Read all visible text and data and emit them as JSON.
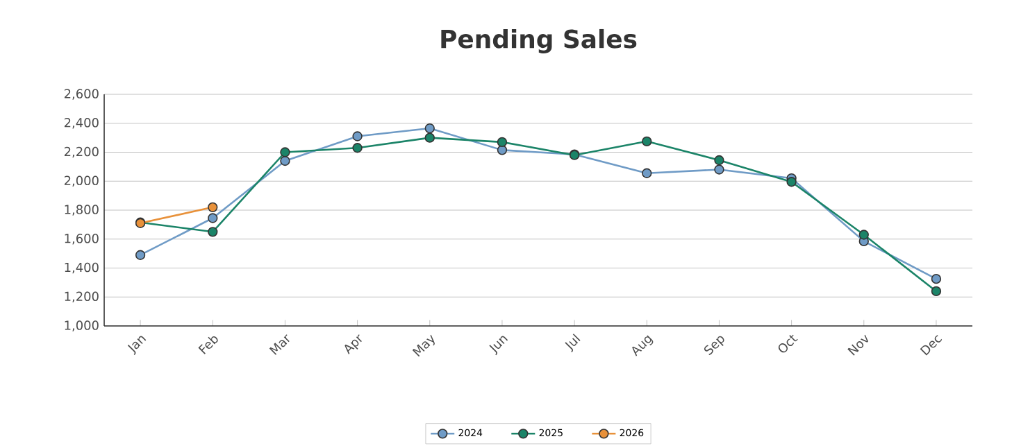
{
  "chart_data": {
    "type": "line",
    "title": "Pending Sales",
    "categories": [
      "Jan",
      "Feb",
      "Mar",
      "Apr",
      "May",
      "Jun",
      "Jul",
      "Aug",
      "Sep",
      "Oct",
      "Nov",
      "Dec"
    ],
    "series": [
      {
        "name": "2024",
        "color": "#6f9bc6",
        "values": [
          1490,
          1745,
          2140,
          2310,
          2365,
          2215,
          2185,
          2055,
          2080,
          2020,
          1585,
          1325
        ]
      },
      {
        "name": "2025",
        "color": "#1b8468",
        "values": [
          1715,
          1650,
          2200,
          2230,
          2300,
          2270,
          2180,
          2275,
          2145,
          1995,
          1630,
          1240
        ]
      },
      {
        "name": "2026",
        "color": "#e8913a",
        "values": [
          1710,
          1820,
          null,
          null,
          null,
          null,
          null,
          null,
          null,
          null,
          null,
          null
        ]
      }
    ],
    "ylim": [
      1000,
      2600
    ],
    "yticks": [
      {
        "value": 1000,
        "label": "1,000"
      },
      {
        "value": 1200,
        "label": "1,200"
      },
      {
        "value": 1400,
        "label": "1,400"
      },
      {
        "value": 1600,
        "label": "1,600"
      },
      {
        "value": 1800,
        "label": "1,800"
      },
      {
        "value": 2000,
        "label": "2,000"
      },
      {
        "value": 2200,
        "label": "2,200"
      },
      {
        "value": 2400,
        "label": "2,400"
      },
      {
        "value": 2600,
        "label": "2,600"
      }
    ],
    "grid": "y",
    "legend": "bottom",
    "marker": "circle",
    "line_style": "solid"
  }
}
